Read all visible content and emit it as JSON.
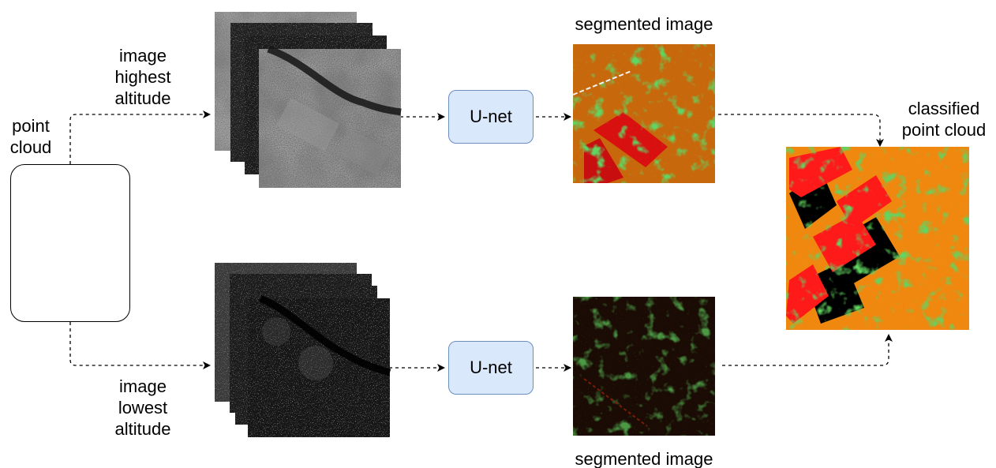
{
  "point_cloud_label": [
    "point",
    "cloud"
  ],
  "branch_top_label": [
    "image",
    "highest",
    "altitude"
  ],
  "branch_bottom_label": [
    "image",
    "lowest",
    "altitude"
  ],
  "unet_top_label": "U-net",
  "unet_bottom_label": "U-net",
  "segmented_top_label": "segmented image",
  "segmented_bottom_label": "segmented image",
  "classified_label": [
    "classified",
    "point cloud"
  ],
  "colors": {
    "unet_fill": "#dae8fc",
    "unet_border": "#6c8ebf",
    "class_ground": "#e8820c",
    "class_building": "#e01010",
    "class_vegetation": "#22a522",
    "class_shadow": "#000000"
  }
}
